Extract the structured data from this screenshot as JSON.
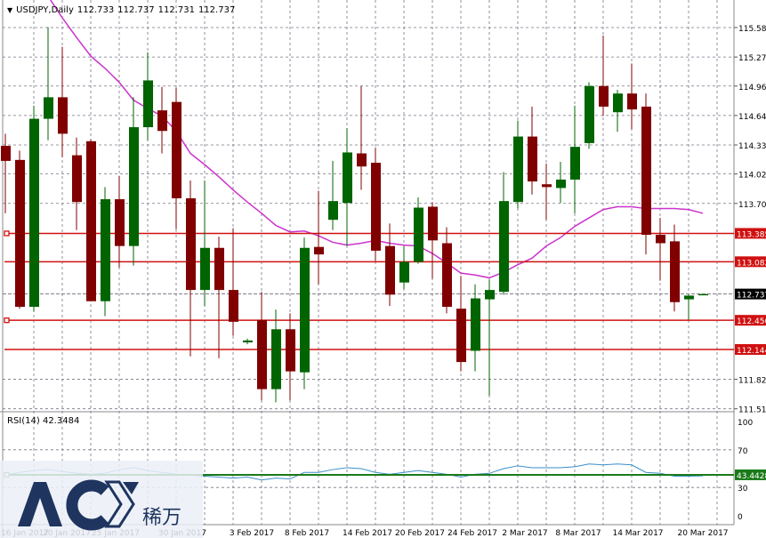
{
  "header": {
    "symbol": "USDJPY,Daily",
    "ohlc": [
      "112.733",
      "112.737",
      "112.731",
      "112.737"
    ]
  },
  "price_axis": {
    "labels": [
      "115.585",
      "115.270",
      "114.960",
      "114.645",
      "114.330",
      "114.020",
      "113.705",
      "111.825",
      "111.510"
    ]
  },
  "levels": [
    {
      "price": 113.385,
      "label": "113.385",
      "color": "#d01010",
      "marker": true
    },
    {
      "price": 113.082,
      "label": "113.082",
      "color": "#d01010",
      "marker": false
    },
    {
      "price": 112.456,
      "label": "112.456",
      "color": "#d01010",
      "marker": true
    },
    {
      "price": 112.144,
      "label": "112.144",
      "color": "#d01010",
      "marker": false
    }
  ],
  "current_price": {
    "price": 112.737,
    "label": "112.737"
  },
  "rsi": {
    "title": "RSI(14) 42.3484",
    "axis": [
      "100",
      "70",
      "30",
      "0"
    ],
    "level": {
      "value": 43.4428,
      "label": "43.4428",
      "color": "#1a7a1a"
    }
  },
  "date_axis": [
    "16 Jan 2017",
    "20 Jan 2017",
    "25 Jan 2017",
    "30 Jan 2017",
    "3 Feb 2017",
    "8 Feb 2017",
    "14 Feb 2017",
    "20 Feb 2017",
    "24 Feb 2017",
    "2 Mar 2017",
    "8 Mar 2017",
    "14 Mar 2017",
    "20 Mar 2017"
  ],
  "logo": {
    "text": "ACY",
    "cn": "稀万"
  },
  "colors": {
    "bull": "#006400",
    "bear": "#800000",
    "ma": "#cc33cc",
    "rsi": "#3a8fc8",
    "grid": "#777788"
  },
  "chart_data": {
    "type": "candlestick",
    "ylim": [
      111.46,
      115.7
    ],
    "rsi_ylim": [
      0,
      100
    ],
    "candles": [
      [
        114.32,
        114.45,
        113.6,
        114.16
      ],
      [
        114.17,
        114.27,
        112.58,
        112.6
      ],
      [
        112.6,
        114.75,
        112.55,
        114.61
      ],
      [
        114.61,
        115.59,
        114.38,
        114.84
      ],
      [
        114.84,
        115.38,
        114.2,
        114.45
      ],
      [
        114.22,
        114.41,
        113.42,
        113.72
      ],
      [
        114.37,
        114.39,
        112.66,
        112.66
      ],
      [
        112.66,
        113.88,
        112.5,
        113.75
      ],
      [
        113.75,
        114.0,
        113.02,
        113.25
      ],
      [
        113.25,
        114.84,
        113.04,
        114.52
      ],
      [
        114.52,
        115.32,
        114.38,
        115.02
      ],
      [
        114.7,
        114.95,
        114.24,
        114.48
      ],
      [
        114.79,
        114.94,
        113.43,
        113.76
      ],
      [
        113.76,
        113.95,
        112.07,
        112.78
      ],
      [
        112.78,
        113.95,
        112.61,
        113.23
      ],
      [
        113.23,
        113.35,
        112.05,
        112.78
      ],
      [
        112.78,
        113.44,
        112.29,
        112.44
      ],
      [
        112.22,
        112.26,
        112.2,
        112.24
      ],
      [
        112.46,
        112.76,
        111.6,
        111.72
      ],
      [
        111.72,
        112.57,
        111.58,
        112.36
      ],
      [
        112.36,
        112.53,
        111.6,
        111.91
      ],
      [
        111.9,
        113.34,
        111.72,
        113.23
      ],
      [
        113.24,
        113.84,
        112.84,
        113.16
      ],
      [
        113.53,
        114.16,
        113.42,
        113.73
      ],
      [
        113.71,
        114.51,
        113.25,
        114.25
      ],
      [
        114.24,
        114.96,
        113.85,
        114.1
      ],
      [
        114.14,
        114.3,
        113.09,
        113.2
      ],
      [
        113.25,
        113.49,
        112.61,
        112.73
      ],
      [
        112.86,
        113.25,
        112.79,
        113.08
      ],
      [
        113.08,
        113.77,
        113.06,
        113.66
      ],
      [
        113.67,
        113.72,
        112.9,
        113.31
      ],
      [
        113.28,
        113.45,
        112.53,
        112.6
      ],
      [
        112.58,
        112.93,
        111.91,
        112.01
      ],
      [
        112.13,
        112.84,
        111.91,
        112.69
      ],
      [
        112.68,
        112.89,
        111.65,
        112.78
      ],
      [
        112.76,
        114.04,
        112.73,
        113.73
      ],
      [
        113.72,
        114.59,
        113.65,
        114.42
      ],
      [
        114.42,
        114.74,
        113.8,
        113.94
      ],
      [
        113.91,
        114.13,
        113.53,
        113.88
      ],
      [
        113.87,
        114.15,
        113.71,
        113.96
      ],
      [
        113.96,
        114.75,
        113.6,
        114.31
      ],
      [
        114.35,
        115.0,
        114.29,
        114.96
      ],
      [
        114.96,
        115.5,
        114.64,
        114.74
      ],
      [
        114.68,
        114.92,
        114.47,
        114.88
      ],
      [
        114.88,
        115.2,
        114.5,
        114.71
      ],
      [
        114.74,
        114.88,
        113.16,
        113.37
      ],
      [
        113.37,
        113.55,
        112.88,
        113.28
      ],
      [
        113.3,
        113.48,
        112.55,
        112.65
      ],
      [
        112.68,
        112.73,
        112.46,
        112.72
      ],
      [
        112.733,
        112.737,
        112.731,
        112.737
      ]
    ],
    "ma": [
      null,
      null,
      null,
      115.92,
      115.69,
      115.48,
      115.28,
      115.15,
      115.0,
      114.81,
      114.72,
      114.64,
      114.48,
      114.24,
      114.12,
      113.99,
      113.85,
      113.72,
      113.6,
      113.47,
      113.4,
      113.41,
      113.36,
      113.29,
      113.26,
      113.28,
      113.31,
      113.28,
      113.26,
      113.25,
      113.17,
      113.07,
      112.96,
      112.94,
      112.91,
      112.97,
      113.05,
      113.12,
      113.25,
      113.34,
      113.46,
      113.55,
      113.64,
      113.67,
      113.67,
      113.65,
      113.65,
      113.65,
      113.64,
      113.6
    ],
    "rsi_values": [
      43,
      46,
      48,
      49,
      47,
      45,
      44,
      45,
      49,
      51,
      48,
      46,
      44,
      43,
      42,
      41,
      40,
      41,
      38,
      40,
      39,
      46,
      46,
      49,
      51,
      50,
      46,
      44,
      46,
      48,
      46,
      44,
      41,
      44,
      45,
      50,
      53,
      51,
      51,
      51,
      52,
      55,
      54,
      55,
      54,
      46,
      45,
      42,
      42,
      42.3
    ]
  }
}
